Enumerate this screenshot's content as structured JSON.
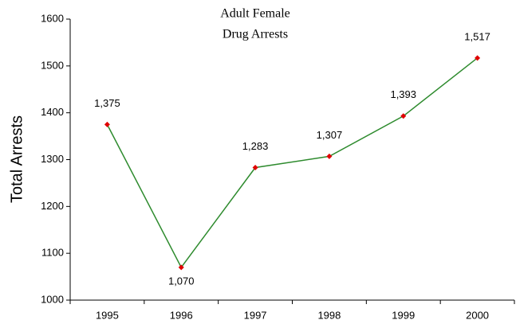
{
  "chart_data": {
    "type": "line",
    "title": [
      "Adult Female",
      "Drug Arrests"
    ],
    "y_label": "Total Arrests",
    "categories": [
      "1995",
      "1996",
      "1997",
      "1998",
      "1999",
      "2000"
    ],
    "series": [
      {
        "name": "Adult Female Drug Arrests",
        "color": "#2e8b2e",
        "marker_color": "#e00000",
        "values": [
          1375,
          1070,
          1283,
          1307,
          1393,
          1517
        ],
        "value_labels": [
          "1,375",
          "1,070",
          "1,283",
          "1,307",
          "1,393",
          "1,517"
        ]
      }
    ],
    "ylim": [
      1000,
      1600
    ],
    "yticks": [
      1000,
      1100,
      1200,
      1300,
      1400,
      1500,
      1600
    ],
    "grid": false
  }
}
